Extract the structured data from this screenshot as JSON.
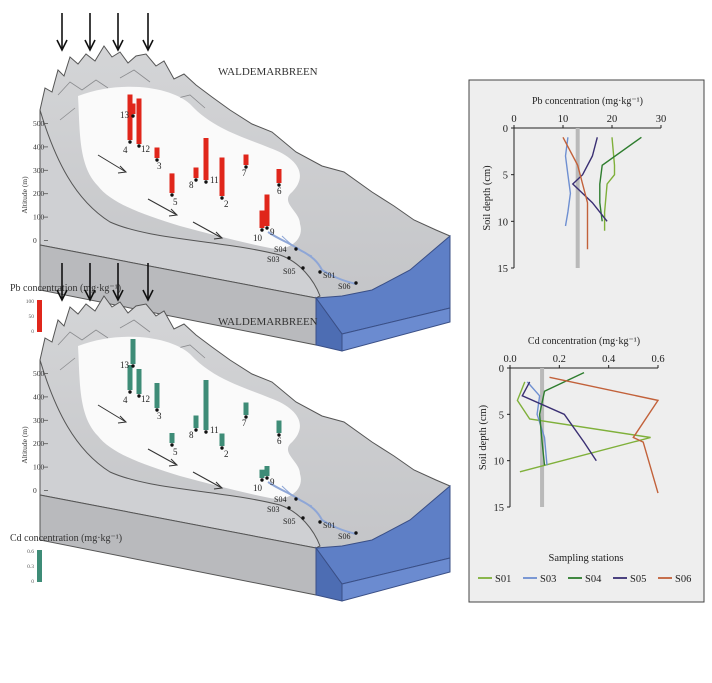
{
  "glacier_name": "WALDEMARBREEN",
  "map_pb": {
    "altitude_label": "Altitude (m)",
    "altitude_ticks": [
      "500",
      "400",
      "300",
      "200",
      "100",
      "0"
    ],
    "legend_title": "Pb concentration (mg·kg⁻¹)",
    "legend_ticks": [
      "100",
      "50",
      "0"
    ],
    "bar_color": "#e0261b",
    "soil_stations": [
      {
        "label": "1",
        "value": 0
      },
      {
        "label": "2",
        "value": 55
      },
      {
        "label": "3",
        "value": 15
      },
      {
        "label": "4",
        "value": 65
      },
      {
        "label": "5",
        "value": 28
      },
      {
        "label": "6",
        "value": 20
      },
      {
        "label": "7",
        "value": 15
      },
      {
        "label": "8",
        "value": 15
      },
      {
        "label": "9",
        "value": 45
      },
      {
        "label": "10",
        "value": 25
      },
      {
        "label": "11",
        "value": 60
      },
      {
        "label": "12",
        "value": 65
      },
      {
        "label": "13",
        "value": 15
      }
    ],
    "water_stations": [
      "S01",
      "S03",
      "S04",
      "S05",
      "S06"
    ]
  },
  "map_cd": {
    "altitude_label": "Altitude (m)",
    "altitude_ticks": [
      "500",
      "400",
      "300",
      "200",
      "100",
      "0"
    ],
    "legend_title": "Cd concentration (mg·kg⁻¹)",
    "legend_ticks": [
      "0.6",
      "0.3",
      "0"
    ],
    "bar_color": "#3e8c77",
    "soil_stations": [
      {
        "label": "1",
        "value": 0
      },
      {
        "label": "2",
        "value": 0.15
      },
      {
        "label": "3",
        "value": 0.3
      },
      {
        "label": "4",
        "value": 0.3
      },
      {
        "label": "5",
        "value": 0.12
      },
      {
        "label": "6",
        "value": 0.15
      },
      {
        "label": "7",
        "value": 0.15
      },
      {
        "label": "8",
        "value": 0.15
      },
      {
        "label": "9",
        "value": 0.12
      },
      {
        "label": "10",
        "value": 0.1
      },
      {
        "label": "11",
        "value": 0.6
      },
      {
        "label": "12",
        "value": 0.3
      },
      {
        "label": "13",
        "value": 0.3
      }
    ],
    "water_stations": [
      "S01",
      "S03",
      "S04",
      "S05",
      "S06"
    ]
  },
  "chart_data": [
    {
      "type": "line",
      "title": "Pb concentration (mg·kg⁻¹)",
      "xlabel": "",
      "ylabel": "Soil depth (cm)",
      "xlim": [
        0,
        30
      ],
      "ylim": [
        15,
        0
      ],
      "x_ticks": [
        "0",
        "10",
        "20",
        "30"
      ],
      "y_ticks": [
        "0",
        "5",
        "10",
        "15"
      ],
      "reference_line": 13,
      "series": [
        {
          "name": "S01",
          "points": [
            [
              20,
              1
            ],
            [
              20.5,
              4
            ],
            [
              20.5,
              5
            ],
            [
              19,
              6
            ],
            [
              18.5,
              9
            ],
            [
              18.5,
              11
            ]
          ]
        },
        {
          "name": "S03",
          "points": [
            [
              11,
              1
            ],
            [
              10.5,
              3
            ],
            [
              11,
              5
            ],
            [
              11.5,
              7
            ],
            [
              11,
              9
            ],
            [
              10.5,
              10.5
            ]
          ]
        },
        {
          "name": "S04",
          "points": [
            [
              26,
              1
            ],
            [
              18,
              4
            ],
            [
              17.5,
              6
            ],
            [
              17.5,
              8
            ],
            [
              18,
              10
            ]
          ]
        },
        {
          "name": "S05",
          "points": [
            [
              17,
              1
            ],
            [
              16,
              3
            ],
            [
              14,
              5
            ],
            [
              12,
              6
            ],
            [
              16,
              8
            ],
            [
              19,
              10
            ]
          ]
        },
        {
          "name": "S06",
          "points": [
            [
              10,
              1
            ],
            [
              13,
              4
            ],
            [
              14,
              6
            ],
            [
              15,
              8
            ],
            [
              15,
              13
            ]
          ]
        }
      ]
    },
    {
      "type": "line",
      "title": "Cd concentration (mg·kg⁻¹)",
      "xlabel": "",
      "ylabel": "Soil depth (cm)",
      "xlim": [
        0,
        0.6
      ],
      "ylim": [
        15,
        0
      ],
      "x_ticks": [
        "0.0",
        "0.2",
        "0.4",
        "0.6"
      ],
      "y_ticks": [
        "0",
        "5",
        "10",
        "15"
      ],
      "reference_line": 0.13,
      "series": [
        {
          "name": "S01",
          "points": [
            [
              0.06,
              1.5
            ],
            [
              0.03,
              3.5
            ],
            [
              0.08,
              5.5
            ],
            [
              0.57,
              7.5
            ],
            [
              0.04,
              11.2
            ]
          ]
        },
        {
          "name": "S03",
          "points": [
            [
              0.07,
              1.5
            ],
            [
              0.12,
              3
            ],
            [
              0.11,
              5
            ],
            [
              0.14,
              7.5
            ],
            [
              0.15,
              10.5
            ]
          ]
        },
        {
          "name": "S04",
          "points": [
            [
              0.3,
              0.5
            ],
            [
              0.14,
              2.5
            ],
            [
              0.12,
              5
            ],
            [
              0.13,
              8
            ],
            [
              0.14,
              10.5
            ]
          ]
        },
        {
          "name": "S05",
          "points": [
            [
              0.08,
              1.5
            ],
            [
              0.05,
              3
            ],
            [
              0.22,
              5
            ],
            [
              0.3,
              8
            ],
            [
              0.35,
              10
            ]
          ]
        },
        {
          "name": "S06",
          "points": [
            [
              0.16,
              1
            ],
            [
              0.6,
              3.5
            ],
            [
              0.5,
              7.5
            ],
            [
              0.54,
              8
            ],
            [
              0.6,
              13.5
            ]
          ]
        }
      ]
    }
  ],
  "chart_legend": {
    "title": "Sampling stations",
    "items": [
      {
        "name": "S01",
        "color": "#7fb03a"
      },
      {
        "name": "S03",
        "color": "#6e8fd1"
      },
      {
        "name": "S04",
        "color": "#2e7d2e"
      },
      {
        "name": "S05",
        "color": "#3a2f73"
      },
      {
        "name": "S06",
        "color": "#c2613a"
      }
    ]
  }
}
